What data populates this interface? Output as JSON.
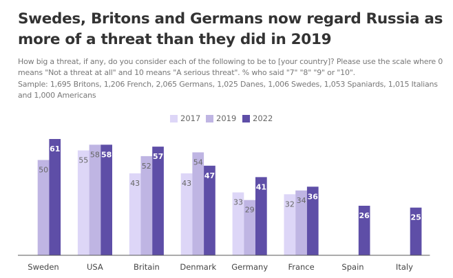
{
  "title": "Swedes, Britons and Germans now regard Russia as more of a threat than they did in 2019",
  "subtitle": "How big a threat, if any, do you consider each of the following to be to [your country]? Please use the scale where 0 means \"Not a threat at all\" and 10 means \"A serious threat\". % who said \"7\" \"8\" \"9\" or \"10\".",
  "sample": "Sample: 1,695 Britons, 1,206 French, 2,065 Germans, 1,025 Danes, 1,006 Swedes, 1,053 Spaniards, 1,015 Italians and 1,000 Americans",
  "colors": {
    "2017": "#ddd6f7",
    "2019": "#bfb5e3",
    "2022": "#5e4ea7",
    "axis": "#555555"
  },
  "chart_data": {
    "type": "bar",
    "categories": [
      "Sweden",
      "USA",
      "Britain",
      "Denmark",
      "Germany",
      "France",
      "Spain",
      "Italy"
    ],
    "series": [
      {
        "name": "2017",
        "values": [
          null,
          55,
          43,
          43,
          33,
          32,
          null,
          null
        ]
      },
      {
        "name": "2019",
        "values": [
          50,
          58,
          52,
          54,
          29,
          34,
          null,
          null
        ]
      },
      {
        "name": "2022",
        "values": [
          61,
          58,
          57,
          47,
          41,
          36,
          26,
          25
        ]
      }
    ],
    "ylim": [
      0,
      66
    ],
    "grid": false,
    "legend_position": "top-center"
  }
}
